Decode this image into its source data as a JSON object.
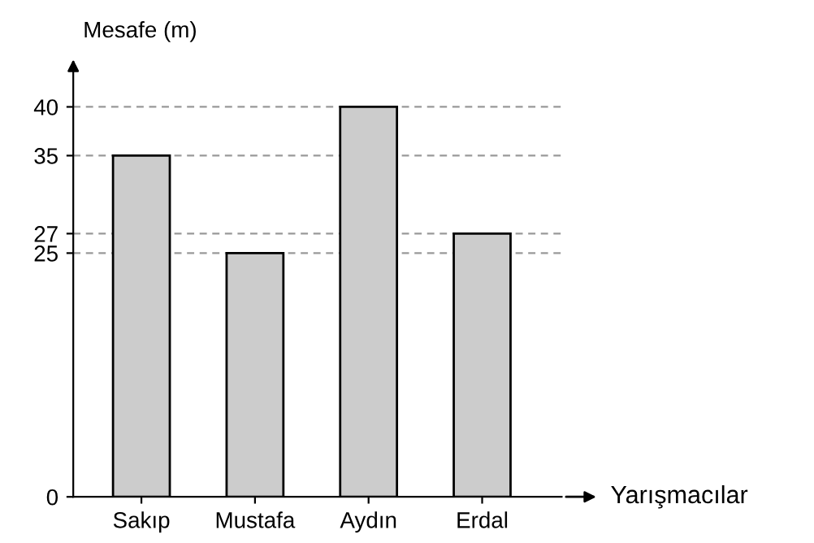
{
  "chart_data": {
    "type": "bar",
    "xlabel": "Yarışmacılar",
    "ylabel": "Mesafe (m)",
    "categories": [
      "Sakıp",
      "Mustafa",
      "Aydın",
      "Erdal"
    ],
    "values": [
      35,
      25,
      40,
      27
    ],
    "color": "#cccccc",
    "ylim": [
      0,
      44
    ],
    "yticks": [
      0,
      25,
      27,
      35,
      40
    ],
    "grid": "y"
  }
}
